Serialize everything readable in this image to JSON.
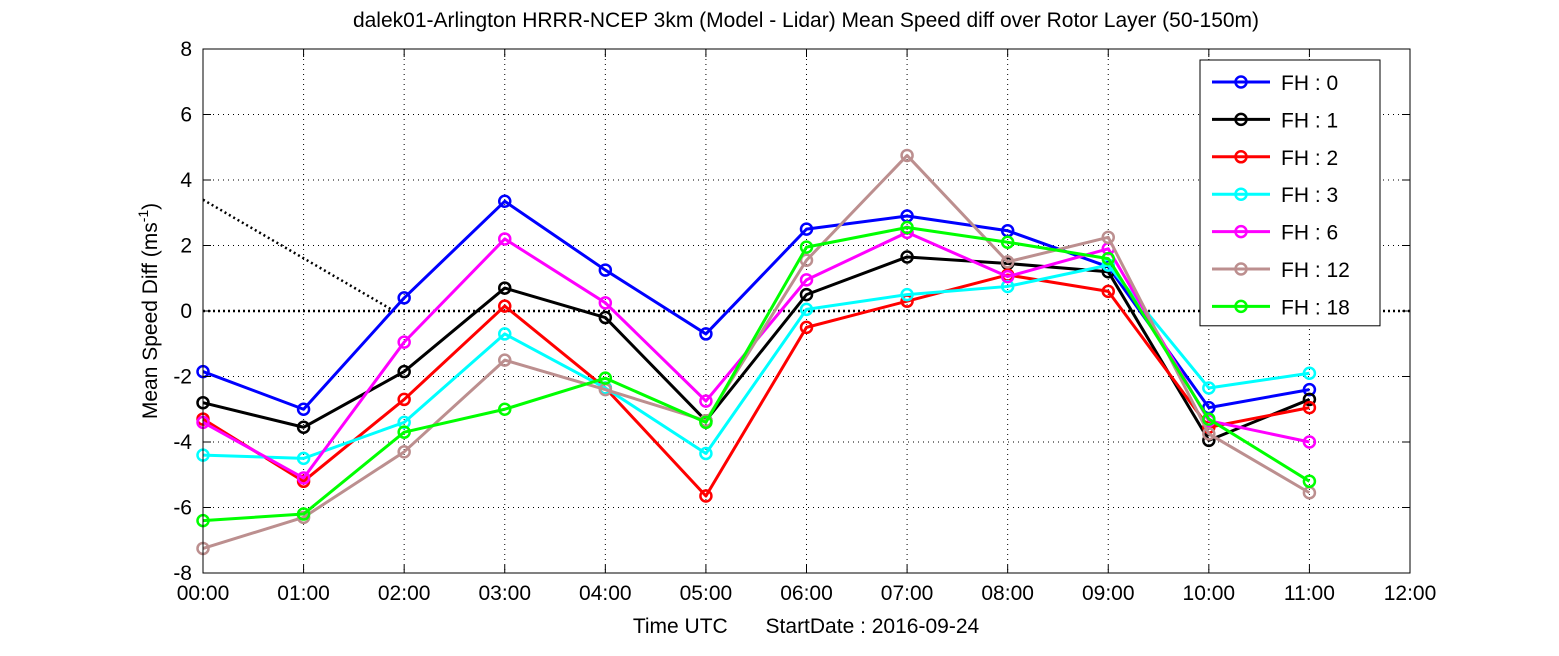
{
  "chart_data": {
    "type": "line",
    "title": "dalek01-Arlington HRRR-NCEP 3km (Model - Lidar) Mean Speed diff over Rotor Layer (50-150m)",
    "xlabel_left": "Time UTC",
    "xlabel_right": "StartDate : 2016-09-24",
    "ylabel": "Mean Speed Diff (ms",
    "ylabel_sup": "-1",
    "ylabel_end": ")",
    "x_ticks": [
      "00:00",
      "01:00",
      "02:00",
      "03:00",
      "04:00",
      "05:00",
      "06:00",
      "07:00",
      "08:00",
      "09:00",
      "10:00",
      "11:00",
      "12:00"
    ],
    "y_ticks": [
      -8,
      -6,
      -4,
      -2,
      0,
      2,
      4,
      6,
      8
    ],
    "xlim": [
      0,
      12
    ],
    "ylim": [
      -8,
      8
    ],
    "grid": true,
    "legend_position": "top-right",
    "x": [
      0,
      1,
      2,
      3,
      4,
      5,
      6,
      7,
      8,
      9,
      10,
      11
    ],
    "series": [
      {
        "name": "FH : 0",
        "color": "#0000ff",
        "values": [
          -1.85,
          -3.0,
          0.4,
          3.35,
          1.25,
          -0.7,
          2.5,
          2.9,
          2.45,
          1.35,
          -2.95,
          -2.4
        ]
      },
      {
        "name": "FH : 1",
        "color": "#000000",
        "values": [
          -2.8,
          -3.55,
          -1.85,
          0.7,
          -0.2,
          -3.35,
          0.5,
          1.65,
          1.45,
          1.2,
          -3.95,
          -2.7
        ]
      },
      {
        "name": "FH : 2",
        "color": "#ff0000",
        "values": [
          -3.3,
          -5.2,
          -2.7,
          0.15,
          -2.35,
          -5.65,
          -0.5,
          0.3,
          1.1,
          0.6,
          -3.55,
          -2.95
        ]
      },
      {
        "name": "FH : 3",
        "color": "#00ffff",
        "values": [
          -4.4,
          -4.5,
          -3.4,
          -0.7,
          -2.35,
          -4.35,
          0.05,
          0.5,
          0.75,
          1.4,
          -2.35,
          -1.9
        ]
      },
      {
        "name": "FH : 6",
        "color": "#ff00ff",
        "values": [
          -3.4,
          -5.1,
          -0.95,
          2.2,
          0.25,
          -2.75,
          0.95,
          2.4,
          1.05,
          1.9,
          -3.35,
          -4.0
        ]
      },
      {
        "name": "FH : 12",
        "color": "#bc8f8f",
        "values": [
          -7.25,
          -6.3,
          -4.3,
          -1.5,
          -2.4,
          -3.35,
          1.55,
          4.75,
          1.5,
          2.25,
          -3.75,
          -5.55
        ]
      },
      {
        "name": "FH : 18",
        "color": "#00ff00",
        "values": [
          -6.4,
          -6.2,
          -3.7,
          -3.0,
          -2.05,
          -3.4,
          1.95,
          2.55,
          2.1,
          1.6,
          -3.3,
          -5.2
        ]
      }
    ],
    "reference_lines": [
      {
        "type": "zero-line",
        "style": "dotted",
        "color": "#000000",
        "x": [
          0,
          12
        ],
        "y": [
          0,
          0
        ]
      },
      {
        "type": "diagonal",
        "style": "dotted",
        "color": "#000000",
        "x": [
          0,
          1.9
        ],
        "y": [
          3.4,
          0
        ]
      }
    ]
  }
}
